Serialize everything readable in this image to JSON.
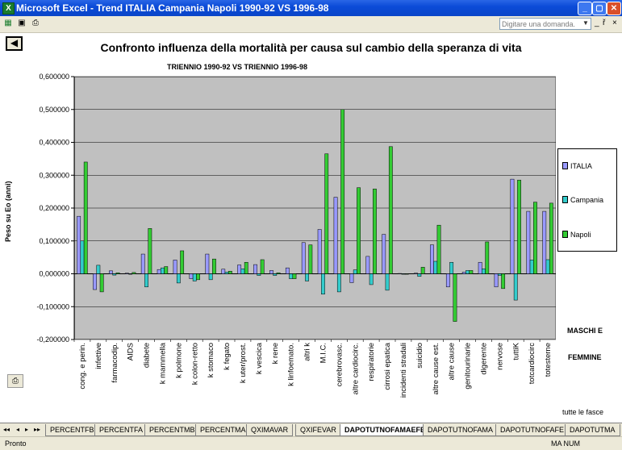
{
  "window": {
    "title": "Microsoft Excel - Trend ITALIA Campania Napoli 1990-92 VS 1996-98",
    "app_icon": "excel-icon",
    "buttons": [
      "minimize",
      "maximize",
      "close"
    ]
  },
  "menubar": {
    "help_placeholder": "Digitare una domanda.",
    "mdi_buttons": [
      "_",
      "ř",
      "×"
    ]
  },
  "chart_data": {
    "type": "bar",
    "title": "Confronto influenza della mortalità per causa sul cambio della speranza di vita",
    "subtitle": "TRIENNIO 1990-92 VS TRIENNIO 1996-98",
    "xlabel": "",
    "ylabel": "Peso su Eo (anni)",
    "ylim": [
      -0.2,
      0.6
    ],
    "yticks": [
      "0,600000",
      "0,500000",
      "0,400000",
      "0,300000",
      "0,200000",
      "0,100000",
      "0,000000",
      "-0,100000",
      "-0,200000"
    ],
    "grid": true,
    "legend_placement": "right",
    "categories": [
      "cong. e perin.",
      "infettive",
      "farmacodip.",
      "AIDS",
      "diabete",
      "k mammella",
      "k polmone",
      "k colon-retto",
      "k stomaco",
      "k fegato",
      "k uter/prost.",
      "k vescica",
      "k rene",
      "k linfoemato.",
      "altri k",
      "M.I.C.",
      "cerebrovasc.",
      "altre cardiocirc.",
      "respiratorie",
      "cirrosi epatica",
      "incidenti stradali",
      "suicidio",
      "altre cause est.",
      "altre cause",
      "genitourinarie",
      "digerente",
      "nervose",
      "tuttiK",
      "totcardiocirc",
      "totesterne"
    ],
    "series": [
      {
        "name": "ITALIA",
        "color": "#9999ff",
        "values": [
          0.175,
          -0.048,
          0.009,
          0.002,
          0.06,
          0.013,
          0.042,
          -0.015,
          0.06,
          0.014,
          0.027,
          0.028,
          0.01,
          0.018,
          0.095,
          0.135,
          0.233,
          -0.027,
          0.053,
          0.12,
          0.001,
          0.002,
          0.088,
          -0.04,
          0.005,
          0.035,
          -0.04,
          0.288,
          0.19,
          0.19
        ]
      },
      {
        "name": "Campania",
        "color": "#33cccc",
        "values": [
          0.1,
          0.026,
          -0.004,
          0.0,
          -0.04,
          0.018,
          -0.028,
          -0.022,
          -0.018,
          0.005,
          0.015,
          -0.005,
          -0.005,
          -0.015,
          -0.022,
          -0.062,
          -0.055,
          0.012,
          -0.033,
          -0.05,
          0.0,
          -0.008,
          0.038,
          0.035,
          0.01,
          0.015,
          -0.005,
          -0.08,
          0.042,
          0.043
        ]
      },
      {
        "name": "Napoli",
        "color": "#33cc33",
        "values": [
          0.34,
          -0.055,
          0.003,
          0.004,
          0.138,
          0.022,
          0.07,
          -0.018,
          0.045,
          0.008,
          0.035,
          0.043,
          0.003,
          -0.015,
          0.088,
          0.365,
          0.5,
          0.262,
          0.258,
          0.387,
          0.0,
          0.02,
          0.148,
          -0.145,
          0.01,
          0.097,
          -0.045,
          0.285,
          0.218,
          0.215
        ]
      }
    ]
  },
  "side_labels": {
    "maschi": "MASCHI E",
    "femmine": "FEMMINE",
    "fasce": "tutte le fasce"
  },
  "sheet_tabs": [
    {
      "label": "PERCENTFB",
      "active": false
    },
    {
      "label": "PERCENTFA",
      "active": false
    },
    {
      "label": "PERCENTMB",
      "active": false
    },
    {
      "label": "PERCENTMA",
      "active": false
    },
    {
      "label": "QXIMAVAR",
      "active": false
    },
    {
      "label": "QXIFEVAR",
      "active": false
    },
    {
      "label": "DAPOTUTNOFAMAEFE",
      "active": true
    },
    {
      "label": "DAPOTUTNOFAMA",
      "active": false
    },
    {
      "label": "DAPOTUTNOFAFE",
      "active": false
    },
    {
      "label": "DAPOTUTMA",
      "active": false
    }
  ],
  "nav_arrows": [
    "◂◂",
    "◂",
    "▸",
    "▸▸"
  ],
  "status": {
    "left": "Pronto",
    "right": "MA NUM"
  }
}
